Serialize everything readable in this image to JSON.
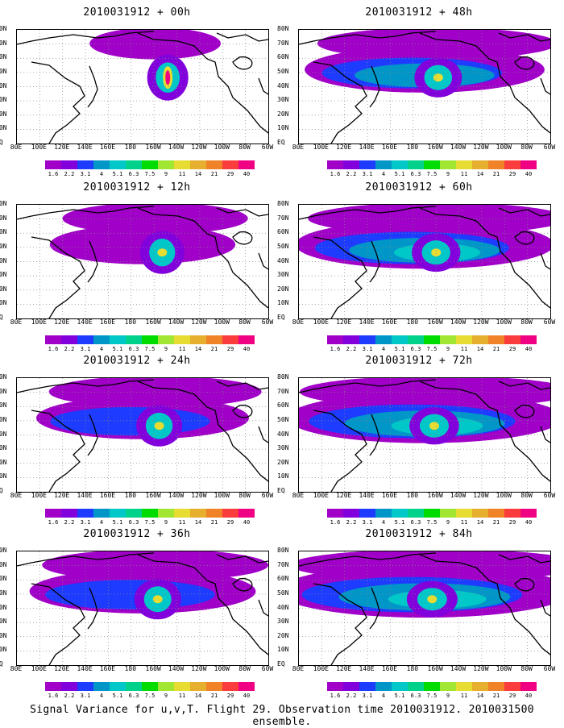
{
  "panels": [
    {
      "id": "p00",
      "title": "2010031912 + 00h",
      "fill_level": 0.15
    },
    {
      "id": "p12",
      "title": "2010031912 + 12h",
      "fill_level": 0.35
    },
    {
      "id": "p24",
      "title": "2010031912 + 24h",
      "fill_level": 0.45
    },
    {
      "id": "p36",
      "title": "2010031912 + 36h",
      "fill_level": 0.5
    },
    {
      "id": "p48",
      "title": "2010031912 + 48h",
      "fill_level": 0.55
    },
    {
      "id": "p60",
      "title": "2010031912 + 60h",
      "fill_level": 0.62
    },
    {
      "id": "p72",
      "title": "2010031912 + 72h",
      "fill_level": 0.68
    },
    {
      "id": "p84",
      "title": "2010031912 + 84h",
      "fill_level": 0.75
    }
  ],
  "axes": {
    "x_ticks": [
      "80E",
      "100E",
      "120E",
      "140E",
      "160E",
      "180",
      "160W",
      "140W",
      "120W",
      "100W",
      "80W",
      "60W"
    ],
    "y_ticks": [
      "80N",
      "70N",
      "60N",
      "50N",
      "40N",
      "30N",
      "20N",
      "10N",
      "EQ"
    ]
  },
  "colorbar": {
    "levels": [
      "1.6",
      "2.2",
      "3.1",
      "4",
      "5.1",
      "6.3",
      "7.5",
      "9",
      "11",
      "14",
      "21",
      "29",
      "40"
    ],
    "colors": [
      "#a000c8",
      "#8200dc",
      "#1e3cff",
      "#0096c8",
      "#00c8c8",
      "#00d28c",
      "#00dc00",
      "#a0e632",
      "#e6dc32",
      "#e6af2d",
      "#f08228",
      "#fa3c3c",
      "#f00082"
    ]
  },
  "chart_data": {
    "type": "heatmap",
    "title": "",
    "xlabel": "",
    "ylabel": "",
    "xlim": [
      "80E",
      "60W"
    ],
    "ylim": [
      "EQ",
      "80N"
    ],
    "grid": true,
    "colorbar_levels": [
      1.6,
      2.2,
      3.1,
      4,
      5.1,
      6.3,
      7.5,
      9,
      11,
      14,
      21,
      29,
      40
    ],
    "panels": [
      "+ 00h",
      "+ 12h",
      "+ 24h",
      "+ 36h",
      "+ 48h",
      "+ 60h",
      "+ 72h",
      "+ 84h"
    ]
  },
  "caption": "Signal Variance for u,v,T. Flight 29. Observation time 2010031912. 2010031500 ensemble."
}
